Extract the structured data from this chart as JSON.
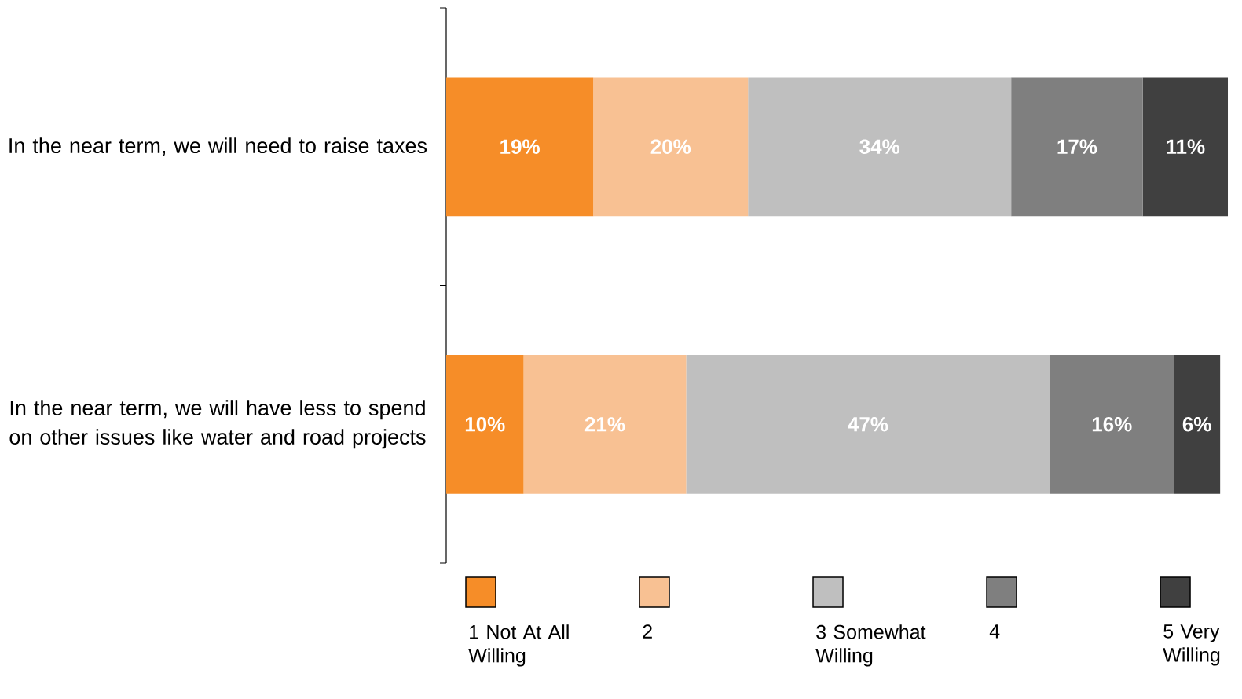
{
  "chart_data": {
    "type": "bar",
    "orientation": "horizontal",
    "stacked": true,
    "legend": "bottom",
    "categories": [
      "In the near term, we will need to raise taxes",
      "In the near term, we will have less to spend on other issues like water and road projects"
    ],
    "series": [
      {
        "name": "1 Not At All Willing",
        "color": "#f68d28",
        "values": [
          19,
          10
        ],
        "value_labels": [
          "19%",
          "10%"
        ]
      },
      {
        "name": "2",
        "color": "#f8c193",
        "values": [
          20,
          21
        ],
        "value_labels": [
          "20%",
          "21%"
        ]
      },
      {
        "name": "3 Somewhat Willing",
        "color": "#bfbfbf",
        "values": [
          34,
          47
        ],
        "value_labels": [
          "34%",
          "47%"
        ]
      },
      {
        "name": "4",
        "color": "#7f7f7f",
        "values": [
          17,
          16
        ],
        "value_labels": [
          "17%",
          "16%"
        ]
      },
      {
        "name": "5 Very Willing",
        "color": "#404040",
        "values": [
          11,
          6
        ],
        "value_labels": [
          "11%",
          "6%"
        ]
      }
    ]
  }
}
